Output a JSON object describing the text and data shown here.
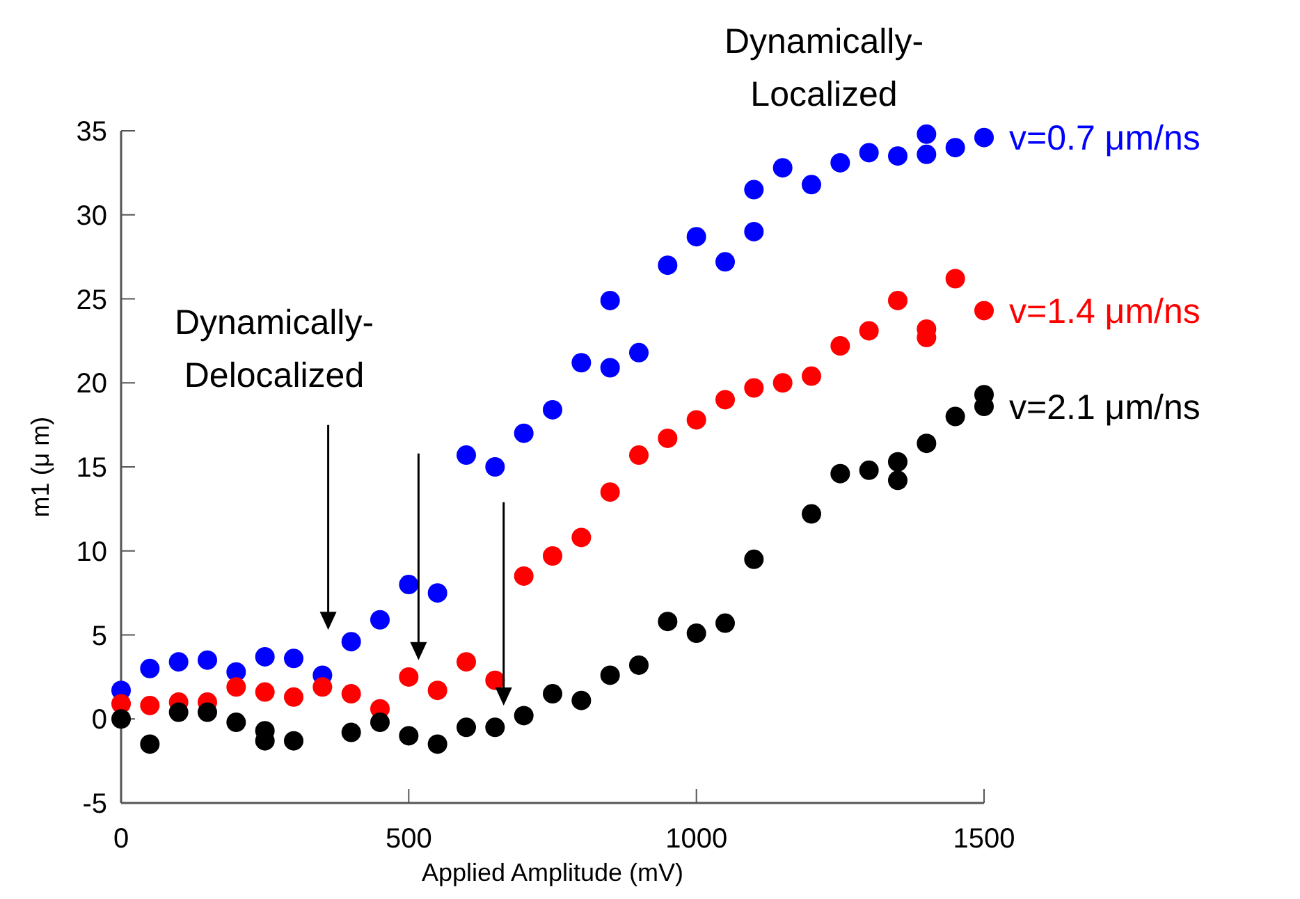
{
  "chart_data": {
    "type": "scatter",
    "xlabel": "Applied Amplitude (mV)",
    "ylabel": "m1 (μ m)",
    "xlim": [
      0,
      1500
    ],
    "xticks": [
      0,
      500,
      1000,
      1500
    ],
    "ylim": [
      -5,
      35
    ],
    "yticks": [
      -5,
      0,
      5,
      10,
      15,
      20,
      25,
      30,
      35
    ],
    "grid": false,
    "marker": "circle",
    "annotations": [
      "Dynamically-Delocalized",
      "Dynamically-Localized"
    ],
    "series": [
      {
        "name": "v=0.7 μm/ns",
        "color": "#0000ff",
        "x": [
          0,
          50,
          100,
          150,
          200,
          250,
          300,
          350,
          400,
          450,
          500,
          550,
          600,
          650,
          700,
          750,
          800,
          850,
          850,
          900,
          950,
          1000,
          1050,
          1100,
          1100,
          1150,
          1200,
          1250,
          1300,
          1350,
          1400,
          1400,
          1450,
          1500
        ],
        "values": [
          1.7,
          3.0,
          3.4,
          3.5,
          2.8,
          3.7,
          3.6,
          2.6,
          4.6,
          5.9,
          8.0,
          7.5,
          15.7,
          15.0,
          17.0,
          18.4,
          21.2,
          20.9,
          24.9,
          21.8,
          27.0,
          28.7,
          27.2,
          29.0,
          31.5,
          32.8,
          31.8,
          33.1,
          33.7,
          33.5,
          34.8,
          33.6,
          34.0,
          34.6
        ]
      },
      {
        "name": "v=1.4 μm/ns",
        "color": "#ff0000",
        "x": [
          0,
          50,
          100,
          150,
          200,
          250,
          300,
          350,
          400,
          450,
          500,
          550,
          600,
          650,
          700,
          750,
          800,
          850,
          900,
          950,
          1000,
          1050,
          1100,
          1150,
          1200,
          1250,
          1300,
          1350,
          1400,
          1400,
          1450,
          1500
        ],
        "values": [
          0.9,
          0.8,
          1.0,
          1.0,
          1.9,
          1.6,
          1.3,
          1.9,
          1.5,
          0.6,
          2.5,
          1.7,
          3.4,
          2.3,
          8.5,
          9.7,
          10.8,
          13.5,
          15.7,
          16.7,
          17.8,
          19.0,
          19.7,
          20.0,
          20.4,
          22.2,
          23.1,
          24.9,
          23.2,
          22.7,
          26.2,
          24.3
        ]
      },
      {
        "name": "v=2.1 μm/ns",
        "color": "#000000",
        "x": [
          0,
          50,
          100,
          150,
          200,
          250,
          250,
          300,
          400,
          450,
          500,
          550,
          600,
          650,
          700,
          750,
          800,
          850,
          900,
          950,
          1000,
          1050,
          1100,
          1200,
          1250,
          1300,
          1350,
          1350,
          1400,
          1450,
          1500,
          1500
        ],
        "values": [
          0.0,
          -1.5,
          0.4,
          0.4,
          -0.2,
          -0.7,
          -1.3,
          -1.3,
          -0.8,
          -0.2,
          -1.0,
          -1.5,
          -0.5,
          -0.5,
          0.2,
          1.5,
          1.1,
          2.6,
          3.2,
          5.8,
          5.1,
          5.7,
          9.5,
          12.2,
          14.6,
          14.8,
          15.3,
          14.2,
          16.4,
          18.0,
          19.3,
          18.6
        ]
      }
    ]
  }
}
